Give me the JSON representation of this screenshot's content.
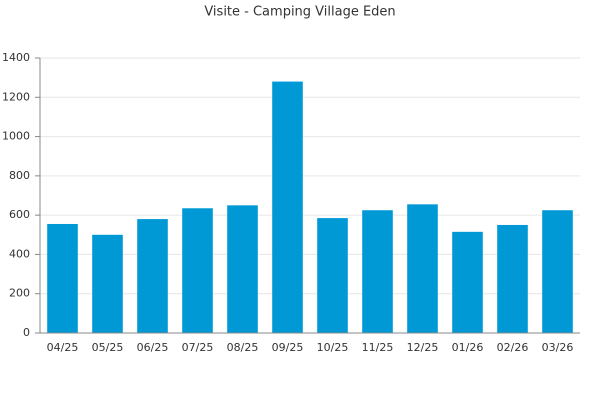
{
  "chart_data": {
    "type": "bar",
    "title": "Visite - Camping Village Eden",
    "categories": [
      "04/25",
      "05/25",
      "06/25",
      "07/25",
      "08/25",
      "09/25",
      "10/25",
      "11/25",
      "12/25",
      "01/26",
      "02/26",
      "03/26"
    ],
    "values": [
      555,
      500,
      580,
      635,
      650,
      1280,
      585,
      625,
      655,
      515,
      550,
      625
    ],
    "color": "#0099d6",
    "ylim": [
      0,
      1400
    ],
    "yticks": [
      0,
      200,
      400,
      600,
      800,
      1000,
      1200,
      1400
    ],
    "grid": true
  }
}
